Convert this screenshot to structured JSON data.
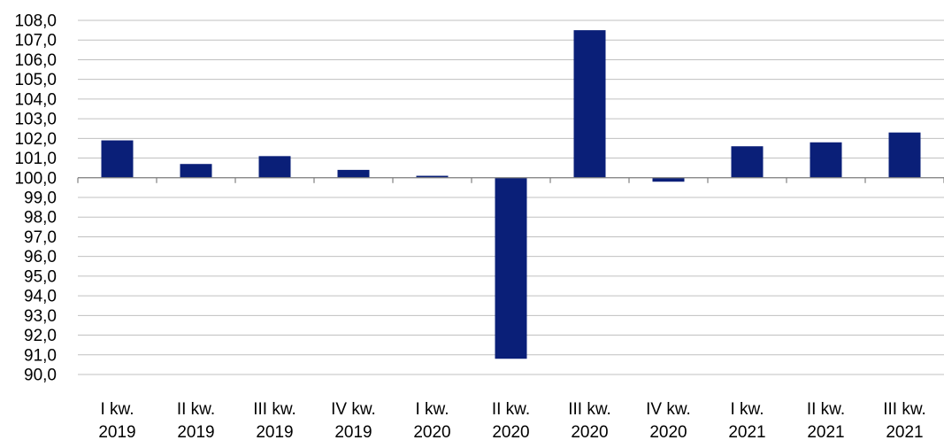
{
  "chart_data": {
    "type": "bar",
    "title": "",
    "xlabel": "",
    "ylabel": "",
    "baseline": 100,
    "ylim": [
      90,
      108
    ],
    "ytick_step": 1,
    "ytick_labels": [
      "90,0",
      "91,0",
      "92,0",
      "93,0",
      "94,0",
      "95,0",
      "96,0",
      "97,0",
      "98,0",
      "99,0",
      "100,0",
      "101,0",
      "102,0",
      "103,0",
      "104,0",
      "105,0",
      "106,0",
      "107,0",
      "108,0"
    ],
    "grid": true,
    "legend": "none",
    "bar_color": "#0a1f78",
    "categories": [
      [
        "I kw.",
        "2019"
      ],
      [
        "II kw.",
        "2019"
      ],
      [
        "III kw.",
        "2019"
      ],
      [
        "IV kw.",
        "2019"
      ],
      [
        "I kw.",
        "2020"
      ],
      [
        "II kw.",
        "2020"
      ],
      [
        "III kw.",
        "2020"
      ],
      [
        "IV kw.",
        "2020"
      ],
      [
        "I kw.",
        "2021"
      ],
      [
        "II kw.",
        "2021"
      ],
      [
        "III kw.",
        "2021"
      ]
    ],
    "values": [
      101.9,
      100.7,
      101.1,
      100.4,
      100.1,
      90.8,
      107.5,
      99.8,
      101.6,
      101.8,
      102.3
    ]
  }
}
